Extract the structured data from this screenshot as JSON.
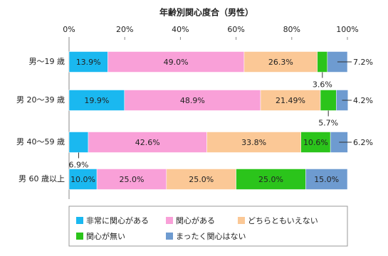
{
  "chart_data": {
    "type": "stacked-bar-horizontal",
    "title": "年齢別関心度合（男性）",
    "categories": [
      "男～19 歳",
      "男 20～39 歳",
      "男 40～59 歳",
      "男 60 歳以上"
    ],
    "series": [
      {
        "name": "非常に関心がある",
        "color": "#1ab8f0",
        "values": [
          13.9,
          19.9,
          6.9,
          10.0
        ],
        "value_labels": [
          "13.9%",
          "19.9%",
          "6.9%",
          "10.0%"
        ]
      },
      {
        "name": "関心がある",
        "color": "#f9a0d8",
        "values": [
          49.0,
          48.9,
          42.6,
          25.0
        ],
        "value_labels": [
          "49.0%",
          "48.9%",
          "42.6%",
          "25.0%"
        ]
      },
      {
        "name": "どちらともいえない",
        "color": "#fbc896",
        "values": [
          26.3,
          21.49,
          33.8,
          25.0
        ],
        "value_labels": [
          "26.3%",
          "21.49%",
          "33.8%",
          "25.0%"
        ]
      },
      {
        "name": "関心が無い",
        "color": "#2bc41b",
        "values": [
          3.6,
          5.7,
          10.6,
          25.0
        ],
        "value_labels": [
          "3.6%",
          "5.7%",
          "10.6%",
          "25.0%"
        ]
      },
      {
        "name": "まったく関心はない",
        "color": "#6e9bd0",
        "values": [
          7.2,
          4.2,
          6.2,
          15.0
        ],
        "value_labels": [
          "7.2%",
          "4.2%",
          "6.2%",
          "15.0%"
        ]
      }
    ],
    "xlim": [
      0,
      100
    ],
    "xticks": [
      {
        "value": 0,
        "label": "0%"
      },
      {
        "value": 20,
        "label": "20%"
      },
      {
        "value": 40,
        "label": "40%"
      },
      {
        "value": 60,
        "label": "60%"
      },
      {
        "value": 80,
        "label": "80%"
      },
      {
        "value": 100,
        "label": "100%"
      }
    ]
  }
}
